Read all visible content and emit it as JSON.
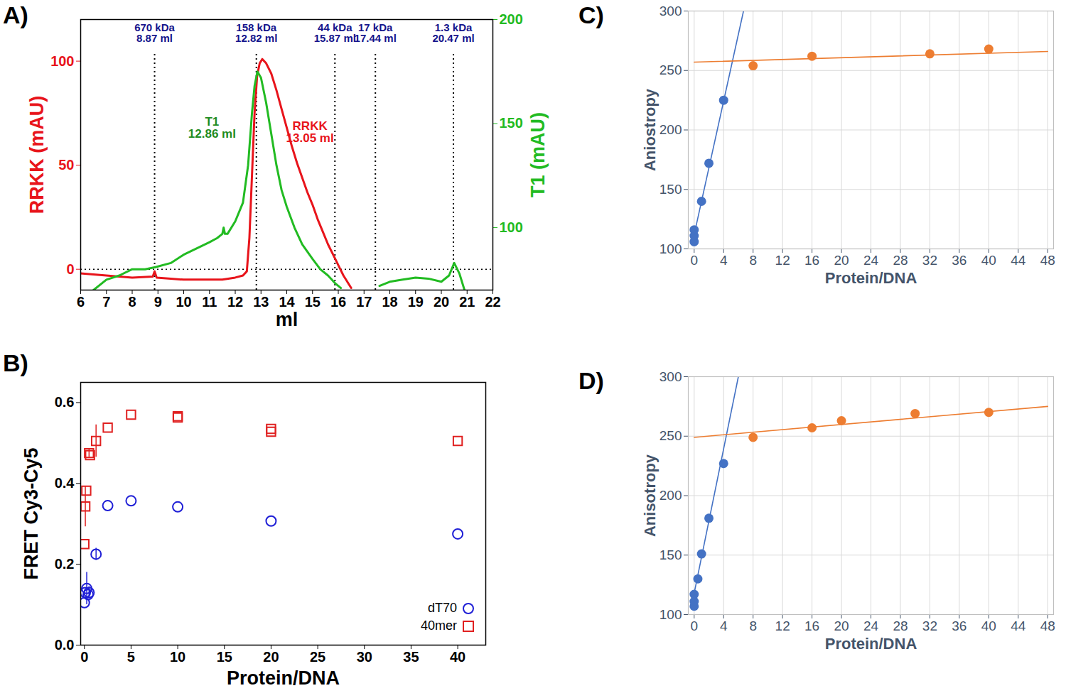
{
  "chart_data": [
    {
      "title": "A)",
      "type": "line",
      "x_label": "ml",
      "y_label": "RRKK (mAU)",
      "y2_label": "T1 (mAU)",
      "xlim": [
        6,
        22
      ],
      "xticks": [
        6,
        7,
        8,
        9,
        10,
        11,
        12,
        13,
        14,
        15,
        16,
        17,
        18,
        19,
        20,
        21,
        22
      ],
      "ylim": [
        -10,
        120
      ],
      "yticks": [
        0,
        50,
        100
      ],
      "y2lim": [
        70,
        200
      ],
      "y2ticks": [
        100,
        150,
        200
      ],
      "series": [
        {
          "color": "#e8141b",
          "x": [
            6,
            7,
            8,
            8.8,
            8.87,
            8.95,
            9.5,
            10,
            10.5,
            11,
            11.5,
            12,
            12.3,
            12.45,
            12.55,
            12.65,
            12.75,
            12.85,
            12.95,
            13.05,
            13.2,
            13.4,
            13.6,
            13.8,
            14,
            14.2,
            14.4,
            14.6,
            14.8,
            15,
            15.2,
            15.4,
            15.6,
            15.8,
            16,
            16.2,
            16.5
          ],
          "values": [
            -2,
            -3,
            -4,
            -3.5,
            -1,
            -4,
            -4.5,
            -5,
            -5,
            -5,
            -5,
            -4,
            -3,
            -1,
            15,
            45,
            75,
            93,
            99,
            101,
            99,
            94,
            86,
            77,
            68,
            59,
            51,
            44,
            37,
            31,
            24,
            18,
            12,
            7,
            2,
            -3,
            -9
          ]
        },
        {
          "color": "#22bb22",
          "axis": "y2",
          "x": [
            6.5,
            7,
            7.5,
            8,
            8.5,
            8.9,
            9.5,
            10,
            10.5,
            11,
            11.3,
            11.5,
            11.55,
            11.6,
            11.7,
            12,
            12.3,
            12.5,
            12.65,
            12.75,
            12.86,
            13,
            13.2,
            13.4,
            13.6,
            13.8,
            14,
            14.3,
            14.6,
            15,
            15.3,
            15.6,
            15.9,
            16.1,
            16.9,
            17.6,
            18,
            18.5,
            19,
            19.5,
            20,
            20.3,
            20.5,
            20.7,
            20.9
          ],
          "values": [
            70,
            75,
            77,
            80,
            80,
            81,
            83,
            87,
            90,
            93,
            95,
            97,
            100,
            97,
            97,
            103,
            112,
            130,
            155,
            168,
            175,
            172,
            160,
            145,
            130,
            118,
            110,
            100,
            92,
            85,
            80,
            77,
            73,
            71,
            null,
            72,
            74,
            75,
            76,
            75.5,
            74,
            77,
            83,
            78,
            70
          ]
        }
      ],
      "markers": [
        {
          "x": 8.87,
          "text": [
            "670 kDa",
            "8.87 ml"
          ]
        },
        {
          "x": 12.82,
          "text": [
            "158 kDa",
            "12.82 ml"
          ]
        },
        {
          "x": 15.87,
          "text": [
            "44 kDa",
            "15.87 ml"
          ]
        },
        {
          "x": 17.44,
          "text": [
            "17 kDa",
            "17.44 ml"
          ]
        },
        {
          "x": 20.47,
          "text": [
            "1.3 kDa",
            "20.47 ml"
          ]
        }
      ],
      "annotations": [
        {
          "text": [
            "T1",
            "12.86 ml"
          ],
          "x": 11.1,
          "y": 148,
          "axis": "y2",
          "color": "#1e8c1e"
        },
        {
          "text": [
            "RRKK",
            "13.05 ml"
          ],
          "x": 14.9,
          "y": 66,
          "color": "#e8141b"
        }
      ],
      "reference_lines": [
        {
          "axis": "y",
          "value": 0
        }
      ]
    },
    {
      "title": "B)",
      "type": "scatter",
      "x_label": "Protein/DNA",
      "y_label": "FRET Cy3-Cy5",
      "xlim": [
        -0.4,
        43
      ],
      "xticks": [
        0,
        5,
        10,
        15,
        20,
        25,
        30,
        35,
        40
      ],
      "ylim": [
        0,
        0.65
      ],
      "yticks": [
        {
          "value": 0,
          "label": "0.0"
        },
        0.2,
        0.4,
        0.6
      ],
      "legend": "bottom right",
      "series": [
        {
          "name": "dT70",
          "color": "#1f1fd6",
          "marker": "open_circle",
          "x": [
            0,
            0.1,
            0.25,
            0.4,
            0.5,
            1.25,
            2.5,
            5,
            10,
            20,
            40
          ],
          "values": [
            0.105,
            0.13,
            0.14,
            0.125,
            0.13,
            0.225,
            0.345,
            0.357,
            0.342,
            0.307,
            0.275
          ],
          "errors": [
            null,
            null,
            0.04,
            null,
            0.015,
            0.015,
            null,
            null,
            null,
            null,
            null
          ]
        },
        {
          "name": "40mer",
          "color": "#e02020",
          "marker": "open_square",
          "x": [
            0,
            0.1,
            0.2,
            0.5,
            0.6,
            1.25,
            2.5,
            5,
            10,
            10,
            20,
            20,
            40
          ],
          "values": [
            0.25,
            0.343,
            0.382,
            0.475,
            0.47,
            0.505,
            0.538,
            0.57,
            0.563,
            0.566,
            0.535,
            0.528,
            0.505
          ],
          "errors": [
            null,
            0.05,
            null,
            0.01,
            null,
            0.04,
            null,
            null,
            null,
            null,
            null,
            null,
            null
          ]
        }
      ]
    },
    {
      "title": "C)",
      "type": "scatter",
      "x_label": "Protein/DNA",
      "y_label": "Aniostropy",
      "xlim": [
        -0.8,
        48.8
      ],
      "xticks": [
        0,
        4,
        8,
        12,
        16,
        20,
        24,
        28,
        32,
        36,
        40,
        44,
        48
      ],
      "ylim": [
        100,
        300
      ],
      "yticks": [
        100,
        150,
        200,
        250,
        300
      ],
      "grid": true,
      "series": [
        {
          "color": "#4472c4",
          "marker": "circle",
          "x": [
            0,
            0,
            0,
            1,
            2,
            4
          ],
          "values": [
            106,
            111,
            116,
            140,
            172,
            225
          ]
        },
        {
          "color": "#ed7d31",
          "marker": "circle",
          "x": [
            8,
            16,
            32,
            40
          ],
          "values": [
            254,
            262,
            264,
            268
          ]
        },
        {
          "type": "line",
          "color": "#4472c4",
          "x": [
            0,
            6.7
          ],
          "values": [
            112,
            300
          ]
        },
        {
          "type": "line",
          "color": "#ed7d31",
          "x": [
            0,
            48
          ],
          "values": [
            257,
            266
          ]
        }
      ]
    },
    {
      "title": "D)",
      "type": "scatter",
      "x_label": "Protein/DNA",
      "y_label": "Anisotropy",
      "xlim": [
        -0.8,
        48.8
      ],
      "xticks": [
        0,
        4,
        8,
        12,
        16,
        20,
        24,
        28,
        32,
        36,
        40,
        44,
        48
      ],
      "ylim": [
        100,
        300
      ],
      "yticks": [
        100,
        150,
        200,
        250,
        300
      ],
      "grid": true,
      "series": [
        {
          "color": "#4472c4",
          "marker": "circle",
          "x": [
            0,
            0,
            0,
            0.5,
            1,
            2,
            4
          ],
          "values": [
            107,
            111,
            117,
            130,
            151,
            181,
            227
          ]
        },
        {
          "color": "#ed7d31",
          "marker": "circle",
          "x": [
            8,
            16,
            20,
            30,
            40
          ],
          "values": [
            249,
            257,
            263,
            269,
            270
          ]
        },
        {
          "type": "line",
          "color": "#4472c4",
          "x": [
            0,
            6
          ],
          "values": [
            118,
            300
          ]
        },
        {
          "type": "line",
          "color": "#ed7d31",
          "x": [
            0,
            48
          ],
          "values": [
            249,
            275
          ]
        }
      ]
    }
  ]
}
